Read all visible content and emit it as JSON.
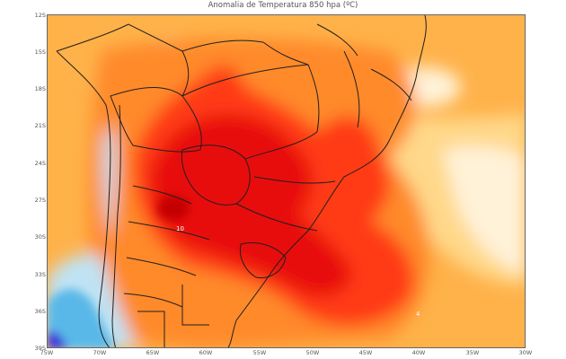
{
  "title": "Anomalia de Temperatura 850 hpa (ºC)",
  "lat_labels": [
    "12S",
    "15S",
    "18S",
    "21S",
    "24S",
    "27S",
    "30S",
    "33S",
    "36S",
    "39S"
  ],
  "lon_labels": [
    "75W",
    "70W",
    "65W",
    "60W",
    "55W",
    "50W",
    "45W",
    "40W",
    "35W",
    "30W"
  ],
  "contour_values": [
    "10",
    "4"
  ],
  "colors": {
    "strong_warm": "#e80c0a",
    "warm": "#ff3b14",
    "moderate": "#ff8a2a",
    "mild": "#ffb24a",
    "slight": "#ffd88a",
    "pale": "#fff2d8",
    "cool": "#bfe3f4",
    "cold": "#5ab8e8",
    "very_cold": "#3d33d6",
    "borders": "#1f1f1f"
  }
}
